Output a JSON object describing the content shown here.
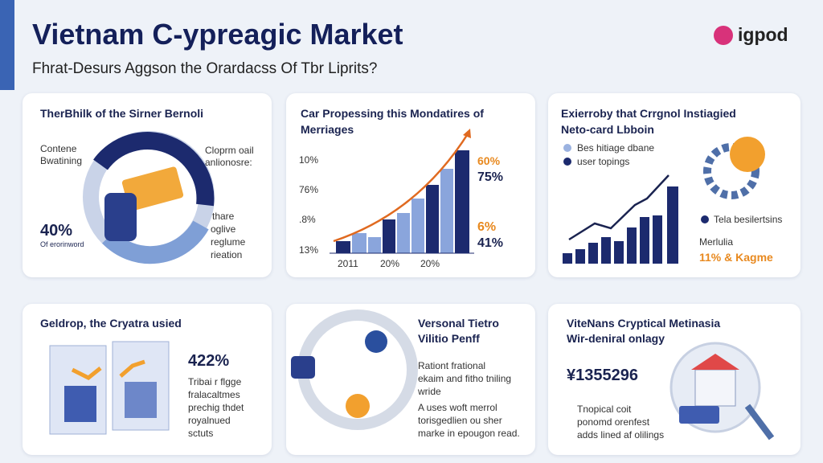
{
  "header": {
    "title": "Vietnam C-ypreagic Market",
    "subtitle": "Fhrat-Desurs Aggson the Orardacss Of Tbr Liprits?",
    "logo": "igpod"
  },
  "cards": [
    {
      "title": "TherBhilk of the Sirner Bernoli",
      "lines": [
        "Contene",
        "Bwatining",
        "Cloprm oail",
        "anlionosre:",
        "thare",
        "oglive",
        "reglume",
        "rieation"
      ],
      "stat": "40%",
      "stat_note": "Of erorinword"
    },
    {
      "title": "Car Propessing this Mondatires of",
      "title2": "Merriages",
      "axis": [
        "10%",
        "76%",
        ".8%",
        "13%"
      ],
      "xaxis": [
        "2011",
        "20%",
        "20%"
      ],
      "side": [
        "60%",
        "75%",
        "6%",
        "41%"
      ]
    },
    {
      "title": "Exierroby that Crrgnol Instiagied",
      "title2": "Neto-card Lbboin",
      "legend": [
        "Bes hitiage dbane",
        "user topings"
      ],
      "lines": [
        "Tela besilertsins",
        "Merlulia"
      ],
      "stat": "11% & Kagme"
    },
    {
      "title": "Geldrop, the Cryatra usied",
      "stat": "422%",
      "lines": [
        "Tribai r flgge",
        "fralacaltmes",
        "prechig thdet",
        "royalnued",
        "sctuts"
      ]
    },
    {
      "title": "Versonal Tietro",
      "title2": "Vilitio Penff",
      "lines": [
        "Rationt frational",
        "ekaim and fitho tniling",
        "wride",
        "A uses woft merrol",
        "torisgedlien ou sher",
        "marke in epougon read."
      ]
    },
    {
      "title": "ViteNans Cryptical Metinasia",
      "title2": "Wir-deniral onlagy",
      "stat": "¥1355296",
      "lines": [
        "Tnopical coit",
        "ponomd orenfest",
        "adds lined af olilings"
      ]
    }
  ]
}
